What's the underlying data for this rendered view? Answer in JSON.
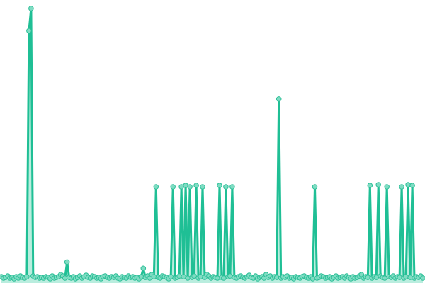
{
  "chart_data": {
    "type": "line",
    "title": "",
    "xlabel": "",
    "ylabel": "",
    "ylim": [
      0,
      396
    ],
    "grid": false,
    "legend": "none",
    "colors": {
      "line": "#1fbf95",
      "point_fill": "#7fdcc3",
      "point_stroke": "#2cbf97",
      "area": "#a8e8d6"
    },
    "x": "index 0-199",
    "series": [
      {
        "values": [
          5,
          3,
          4,
          6,
          3,
          4,
          2,
          5,
          3,
          6,
          4,
          3,
          5,
          358,
          390,
          6,
          4,
          5,
          3,
          4,
          3,
          5,
          4,
          2,
          6,
          3,
          4,
          5,
          8,
          6,
          3,
          26,
          4,
          3,
          5,
          2,
          4,
          6,
          3,
          5,
          7,
          4,
          3,
          6,
          5,
          3,
          4,
          2,
          5,
          6,
          4,
          3,
          5,
          4,
          6,
          3,
          2,
          5,
          4,
          3,
          6,
          4,
          5,
          3,
          4,
          2,
          5,
          17,
          4,
          6,
          3,
          8,
          5,
          134,
          4,
          3,
          6,
          5,
          4,
          2,
          5,
          134,
          3,
          4,
          6,
          134,
          5,
          136,
          3,
          134,
          4,
          6,
          136,
          3,
          5,
          134,
          4,
          8,
          6,
          3,
          5,
          4,
          3,
          136,
          4,
          3,
          134,
          5,
          6,
          134,
          4,
          3,
          5,
          6,
          4,
          3,
          5,
          7,
          4,
          3,
          6,
          2,
          4,
          5,
          3,
          8,
          4,
          6,
          3,
          5,
          4,
          260,
          3,
          5,
          4,
          6,
          3,
          4,
          2,
          5,
          4,
          3,
          5,
          6,
          4,
          3,
          5,
          2,
          134,
          3,
          4,
          6,
          5,
          3,
          4,
          5,
          2,
          4,
          6,
          3,
          4,
          5,
          3,
          6,
          4,
          2,
          5,
          3,
          4,
          6,
          8,
          3,
          5,
          4,
          136,
          3,
          5,
          4,
          137,
          6,
          4,
          3,
          134,
          5,
          4,
          6,
          3,
          5,
          4,
          134,
          3,
          5,
          137,
          4,
          136,
          3,
          5,
          4,
          6,
          3
        ]
      }
    ]
  }
}
